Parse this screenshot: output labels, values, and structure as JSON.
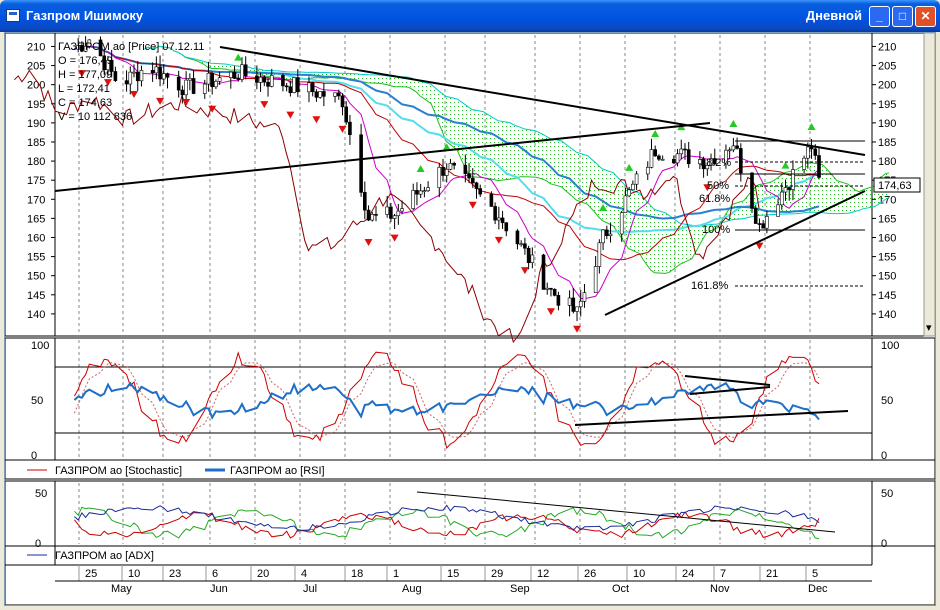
{
  "window": {
    "title": "Газпром Ишимоку",
    "timeframe": "Дневной",
    "minimize_glyph": "_",
    "maximize_glyph": "□",
    "close_glyph": "✕",
    "icon": "chart-window-icon"
  },
  "info_box": {
    "header": "ГАЗПРОМ ao [Price] 07.12.11",
    "open": "O = 176,49",
    "high": "H = 177,09",
    "low": "L = 172,41",
    "close": "C = 174,63",
    "volume": "V = 10 112 836"
  },
  "last_price": "174,63",
  "fibonacci_labels": [
    "38.2%",
    "50%",
    "61.8%",
    "100%",
    "161.8%"
  ],
  "legends": {
    "stochastic": "ГАЗПРОМ ao [Stochastic]",
    "rsi": "ГАЗПРОМ ao [RSI]",
    "adx": "ГАЗПРОМ ao [ADX]"
  },
  "axis": {
    "day_labels": [
      "25",
      "10",
      "23",
      "6",
      "20",
      "4",
      "18",
      "1",
      "15",
      "29",
      "12",
      "26",
      "10",
      "24",
      "7",
      "21",
      "5"
    ],
    "month_labels": [
      "May",
      "Jun",
      "Jul",
      "Aug",
      "Sep",
      "Oct",
      "Nov",
      "Dec"
    ]
  },
  "chart_data": [
    {
      "type": "candlestick",
      "title": "ГАЗПРОМ ao [Price] 07.12.11",
      "ylim": [
        135,
        213
      ],
      "y_ticks": [
        140,
        145,
        150,
        155,
        160,
        165,
        170,
        175,
        180,
        185,
        190,
        195,
        200,
        205,
        210
      ],
      "grid": true,
      "close_series_approx": [
        {
          "x": "May 19",
          "y": 208
        },
        {
          "x": "May 25",
          "y": 212
        },
        {
          "x": "Jun 2",
          "y": 200
        },
        {
          "x": "Jun 10",
          "y": 205
        },
        {
          "x": "Jun 20",
          "y": 199
        },
        {
          "x": "Jul 4",
          "y": 203
        },
        {
          "x": "Jul 18",
          "y": 200
        },
        {
          "x": "Aug 1",
          "y": 196
        },
        {
          "x": "Aug 8",
          "y": 165
        },
        {
          "x": "Aug 15",
          "y": 166
        },
        {
          "x": "Aug 29",
          "y": 179
        },
        {
          "x": "Sep 12",
          "y": 166
        },
        {
          "x": "Sep 26",
          "y": 146
        },
        {
          "x": "Oct 3",
          "y": 140
        },
        {
          "x": "Oct 10",
          "y": 160
        },
        {
          "x": "Oct 24",
          "y": 183
        },
        {
          "x": "Nov 7",
          "y": 180
        },
        {
          "x": "Nov 14",
          "y": 185
        },
        {
          "x": "Nov 21",
          "y": 163
        },
        {
          "x": "Dec 5",
          "y": 184
        },
        {
          "x": "Dec 7",
          "y": 174.63
        }
      ]
    },
    {
      "type": "line",
      "series": [
        {
          "name": "ГАЗПРОМ ao [Stochastic]"
        },
        {
          "name": "ГАЗПРОМ ao [RSI]"
        }
      ],
      "ylim": [
        0,
        100
      ],
      "y_ticks": [
        0,
        50,
        100
      ],
      "levels": [
        20,
        80
      ],
      "grid": true
    },
    {
      "type": "line",
      "series": [
        {
          "name": "ГАЗПРОМ ao [ADX]"
        }
      ],
      "ylim": [
        0,
        55
      ],
      "y_ticks": [
        0,
        25,
        50
      ],
      "grid": true
    }
  ],
  "colors": {
    "titlebar": "#0055e5",
    "up_candle": "#ffffff",
    "down_candle": "#000000",
    "buy_arrow": "#22cc22",
    "sell_arrow": "#e01010",
    "kumo_up": "#22bb22",
    "kumo_down": "#00cccc",
    "tenkan": "#cc00cc",
    "kijun": "#c00000",
    "senkou": "#2a7fd0",
    "chikou": "#8b0000",
    "stochastic": "#cc0000",
    "rsi": "#1e6fc8",
    "adx": "#1a2a9a"
  }
}
